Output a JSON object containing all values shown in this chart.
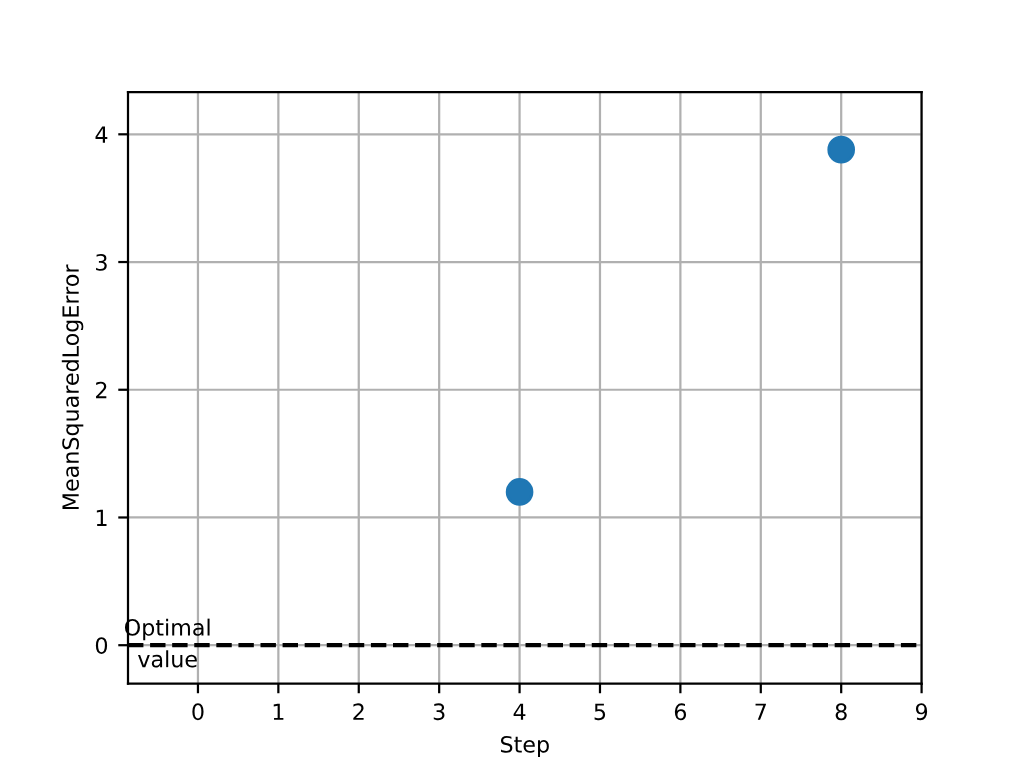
{
  "chart_data": {
    "type": "scatter",
    "xlabel": "Step",
    "ylabel": "MeanSquaredLogError",
    "x": [
      4,
      8
    ],
    "values": [
      1.2,
      3.88
    ],
    "color": "#1f77b4",
    "marker": "circle",
    "xlim": [
      -0.87,
      9
    ],
    "xticks": [
      0,
      1,
      2,
      3,
      4,
      5,
      6,
      7,
      8,
      9
    ],
    "ylim": [
      -0.3,
      4.33
    ],
    "yticks": [
      0,
      1,
      2,
      3,
      4
    ],
    "grid": true,
    "ref_lines": [
      {
        "axis": "y",
        "value": 0,
        "label": "Optimal\nvalue",
        "color": "#000000",
        "line_style": "dashed"
      }
    ]
  }
}
